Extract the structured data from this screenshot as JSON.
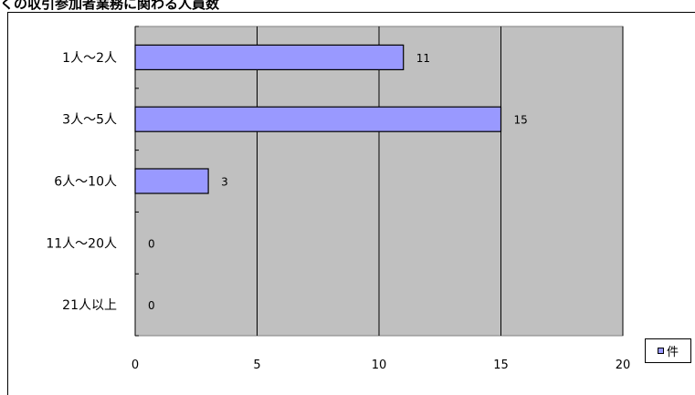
{
  "title": "くの収引参加者業務に関わる人員数",
  "chart_data": {
    "type": "bar",
    "orientation": "horizontal",
    "categories": [
      "1人～2人",
      "3人～5人",
      "6人～10人",
      "11人～20人",
      "21人以上"
    ],
    "series": [
      {
        "name": "件",
        "values": [
          11,
          15,
          3,
          0,
          0
        ]
      }
    ],
    "xlim": [
      0,
      20
    ],
    "xticks": [
      0,
      5,
      10,
      15,
      20
    ],
    "grid": true,
    "legend": "bottom-right",
    "colors": {
      "bar": "#9999ff",
      "plot_area": "#c0c0c0",
      "grid": "#000000"
    }
  }
}
